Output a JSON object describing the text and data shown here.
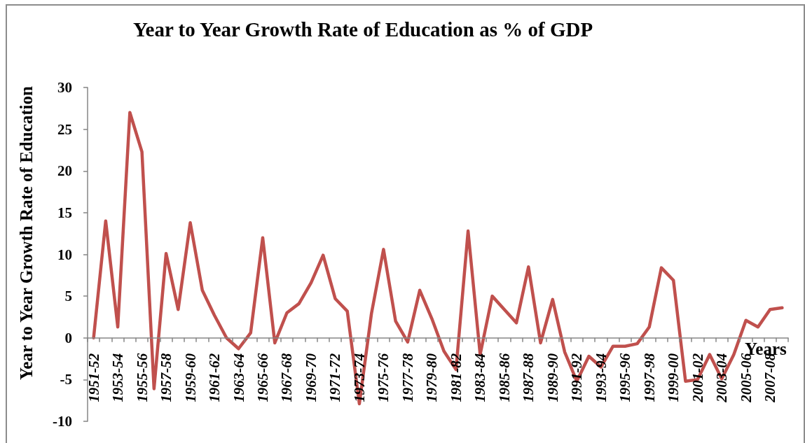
{
  "chart_data": {
    "type": "line",
    "title": "Year to Year Growth Rate of Education as % of GDP",
    "xlabel": "Years",
    "ylabel": "Year to Year Growth Rate of Education",
    "categories": [
      "1951-52",
      null,
      "1953-54",
      null,
      "1955-56",
      null,
      "1957-58",
      null,
      "1959-60",
      null,
      "1961-62",
      null,
      "1963-64",
      null,
      "1965-66",
      null,
      "1967-68",
      null,
      "1969-70",
      null,
      "1971-72",
      null,
      "1973-74",
      null,
      "1975-76",
      null,
      "1977-78",
      null,
      "1979-80",
      null,
      "1981-82",
      null,
      "1983-84",
      null,
      "1985-86",
      null,
      "1987-88",
      null,
      "1989-90",
      null,
      "1991-92",
      null,
      "1993-94",
      null,
      "1995-96",
      null,
      "1997-98",
      null,
      "1999-00",
      null,
      "2001-02",
      null,
      "2003-04",
      null,
      "2005-06",
      null,
      "2007-08",
      null
    ],
    "values": [
      0,
      14,
      1.3,
      27,
      22.3,
      -6.1,
      10.1,
      3.4,
      13.8,
      5.7,
      2.7,
      0,
      -1.3,
      0.6,
      12,
      -0.6,
      3,
      4.1,
      6.6,
      9.9,
      4.7,
      3.2,
      -7.9,
      2.9,
      10.6,
      2,
      -0.5,
      5.7,
      2.3,
      -1.6,
      -3.8,
      12.8,
      -2,
      5,
      3.4,
      1.8,
      8.5,
      -0.6,
      4.6,
      -1.7,
      -5.2,
      -2.2,
      -3.5,
      -1,
      -1,
      -0.7,
      1.3,
      8.4,
      6.9,
      -5.2,
      -5,
      -2,
      -4.9,
      -2,
      2.1,
      1.3,
      3.4,
      3.6
    ],
    "color": "#c0504d",
    "ylim": [
      -10,
      30
    ],
    "yticks": [
      -10,
      -5,
      0,
      5,
      10,
      15,
      20,
      25,
      30
    ],
    "marker": "none",
    "line_style": "solid"
  }
}
